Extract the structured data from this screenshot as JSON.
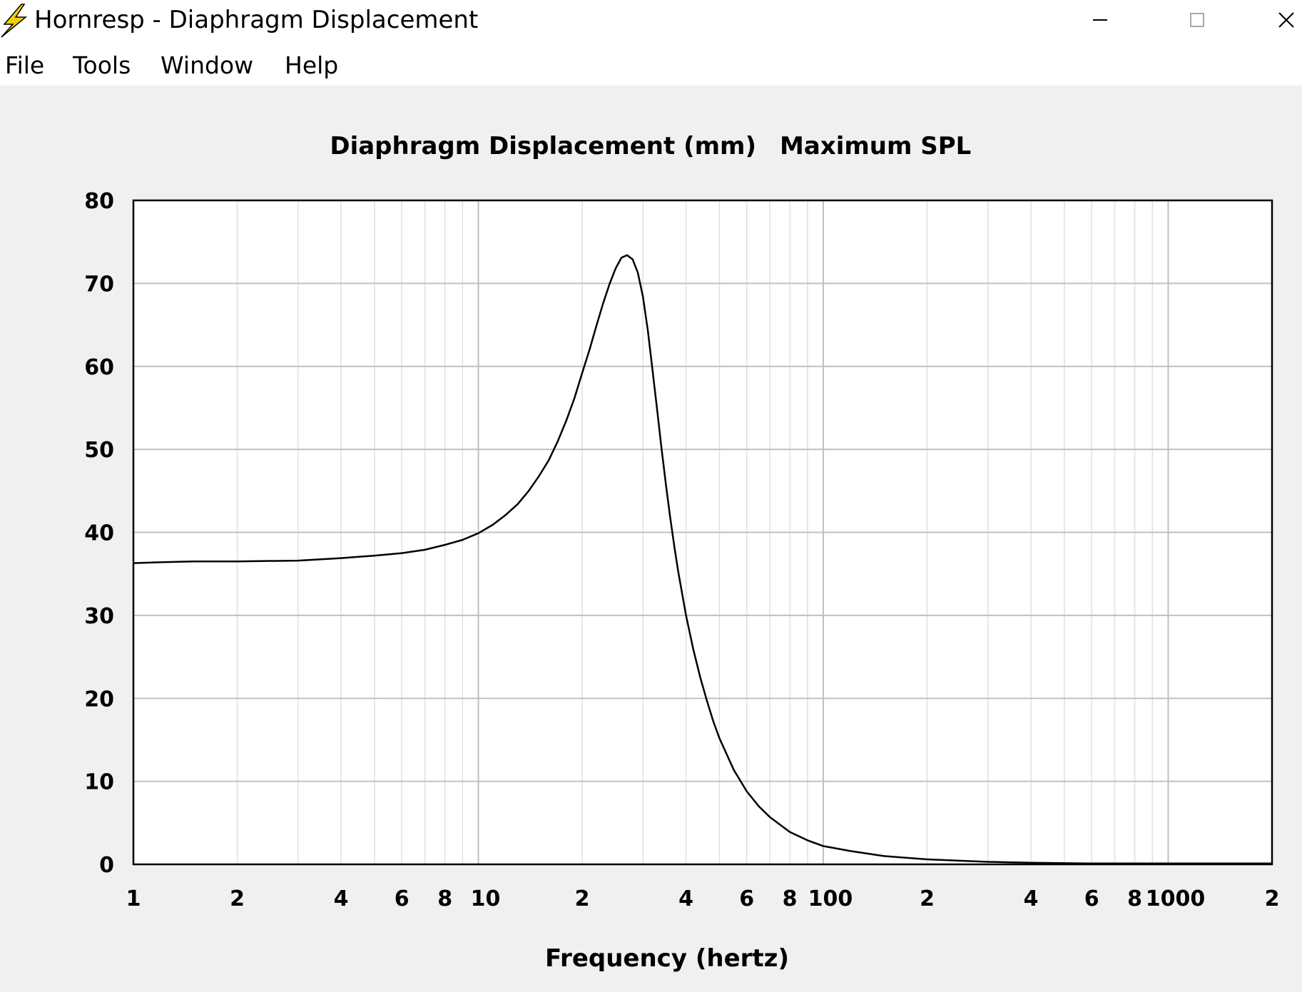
{
  "window": {
    "title": "Hornresp - Diaphragm Displacement"
  },
  "menu": {
    "items": [
      "File",
      "Tools",
      "Window",
      "Help"
    ]
  },
  "chart_data": {
    "type": "line",
    "title": "Diaphragm Displacement (mm)",
    "subtitle": "Maximum SPL",
    "xlabel": "Frequency (hertz)",
    "ylabel": "",
    "xscale": "log",
    "xlim": [
      1,
      2000
    ],
    "ylim": [
      0,
      80
    ],
    "grid": true,
    "x_tick_labels": [
      {
        "value": 1,
        "label": "1"
      },
      {
        "value": 2,
        "label": "2"
      },
      {
        "value": 4,
        "label": "4"
      },
      {
        "value": 6,
        "label": "6"
      },
      {
        "value": 8,
        "label": "8"
      },
      {
        "value": 10,
        "label": "10"
      },
      {
        "value": 20,
        "label": "2"
      },
      {
        "value": 40,
        "label": "4"
      },
      {
        "value": 60,
        "label": "6"
      },
      {
        "value": 80,
        "label": "8"
      },
      {
        "value": 100,
        "label": "100"
      },
      {
        "value": 200,
        "label": "2"
      },
      {
        "value": 400,
        "label": "4"
      },
      {
        "value": 600,
        "label": "6"
      },
      {
        "value": 800,
        "label": "8"
      },
      {
        "value": 1000,
        "label": "1000"
      },
      {
        "value": 2000,
        "label": "2"
      }
    ],
    "y_ticks": [
      0,
      10,
      20,
      30,
      40,
      50,
      60,
      70,
      80
    ],
    "series": [
      {
        "x": [
          1,
          1.2,
          1.5,
          2,
          3,
          4,
          5,
          6,
          7,
          8,
          9,
          10,
          11,
          12,
          13,
          14,
          15,
          16,
          17,
          18,
          19,
          20,
          21,
          22,
          23,
          24,
          25,
          26,
          27,
          28,
          29,
          30,
          31,
          32,
          33,
          34,
          35,
          36,
          37,
          38,
          40,
          42,
          44,
          46,
          48,
          50,
          55,
          60,
          65,
          70,
          80,
          90,
          100,
          120,
          150,
          200,
          300,
          400,
          600,
          1000,
          2000
        ],
        "y": [
          36.3,
          36.4,
          36.5,
          36.5,
          36.6,
          36.9,
          37.2,
          37.5,
          37.9,
          38.5,
          39.1,
          39.9,
          40.9,
          42.1,
          43.4,
          45.0,
          46.8,
          48.7,
          51.0,
          53.5,
          56.2,
          59.2,
          62.0,
          64.9,
          67.6,
          69.9,
          71.8,
          73.1,
          73.4,
          72.9,
          71.3,
          68.4,
          64.3,
          59.5,
          54.7,
          50.0,
          45.7,
          41.8,
          38.3,
          35.2,
          30.0,
          25.9,
          22.5,
          19.7,
          17.2,
          15.2,
          11.4,
          8.8,
          7.0,
          5.7,
          3.9,
          2.9,
          2.2,
          1.6,
          1.0,
          0.6,
          0.3,
          0.2,
          0.1,
          0.1,
          0.1
        ]
      }
    ]
  },
  "colors": {
    "background": "#f0f0f0",
    "plot_background": "#ffffff",
    "grid_major": "#c0c0c0",
    "grid_minor": "#e0e0e0",
    "curve": "#000000",
    "icon_bolt": "#f5d000"
  },
  "icons": {
    "app": "lightning-bolt-icon",
    "minimize": "minimize-icon",
    "maximize": "maximize-icon",
    "close": "close-icon"
  }
}
